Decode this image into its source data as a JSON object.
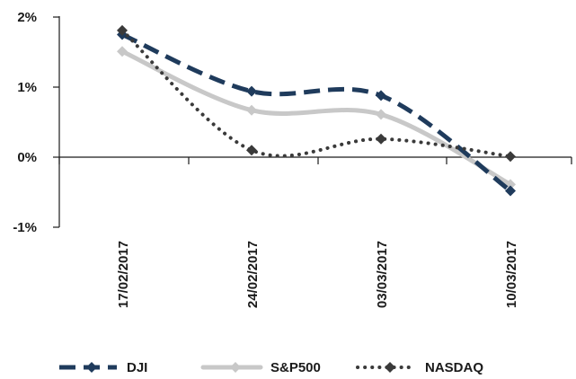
{
  "chart_data": {
    "type": "line",
    "title": "",
    "xlabel": "",
    "ylabel": "",
    "categories": [
      "17/02/2017",
      "24/02/2017",
      "03/03/2017",
      "10/03/2017"
    ],
    "y_ticks": [
      "2%",
      "1%",
      "0%",
      "-1%"
    ],
    "y_tick_values": [
      2,
      1,
      0,
      -1
    ],
    "ylim": [
      -1,
      2
    ],
    "grid": false,
    "legend_position": "bottom",
    "series": [
      {
        "name": "DJI",
        "values": [
          1.75,
          0.94,
          0.88,
          -0.48
        ],
        "color": "#1f3b5c",
        "line_style": "dashed",
        "marker": "diamond"
      },
      {
        "name": "S&P500",
        "values": [
          1.51,
          0.67,
          0.61,
          -0.39
        ],
        "color": "#c8c8c8",
        "line_style": "solid",
        "marker": "diamond"
      },
      {
        "name": "NASDAQ",
        "values": [
          1.81,
          0.1,
          0.26,
          0.01
        ],
        "color": "#3a3a3a",
        "line_style": "dotted",
        "marker": "diamond"
      }
    ]
  }
}
